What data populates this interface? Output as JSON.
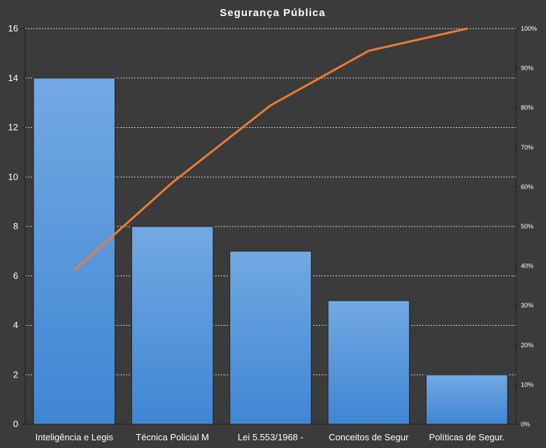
{
  "chart_data": {
    "type": "bar",
    "title": "Segurança Pública",
    "categories": [
      "Inteligência e Legis",
      "Técnica Policial M",
      "Lei 5.553/1968 -",
      "Conceitos de Segur",
      "Políticas de Segur."
    ],
    "series": [
      {
        "type": "bar",
        "axis": "left",
        "values": [
          14,
          8,
          7,
          5,
          2
        ]
      },
      {
        "type": "line",
        "axis": "right",
        "values": [
          38.9,
          61.1,
          80.6,
          94.4,
          100
        ]
      }
    ],
    "ylim": [
      0,
      16
    ],
    "yticks": [
      "0",
      "2",
      "4",
      "6",
      "8",
      "10",
      "12",
      "14",
      "16"
    ],
    "y2lim": [
      0,
      100
    ],
    "y2ticks": [
      "0%",
      "10%",
      "20%",
      "30%",
      "40%",
      "50%",
      "60%",
      "70%",
      "80%",
      "90%",
      "100%"
    ],
    "grid": true,
    "colors": {
      "bar": "#4a90d9",
      "bar_light": "#72a9e3",
      "line": "#ed7d31",
      "grid": "#d8d8d8",
      "background": "#3b3b3b",
      "text": "#ffffff"
    }
  }
}
